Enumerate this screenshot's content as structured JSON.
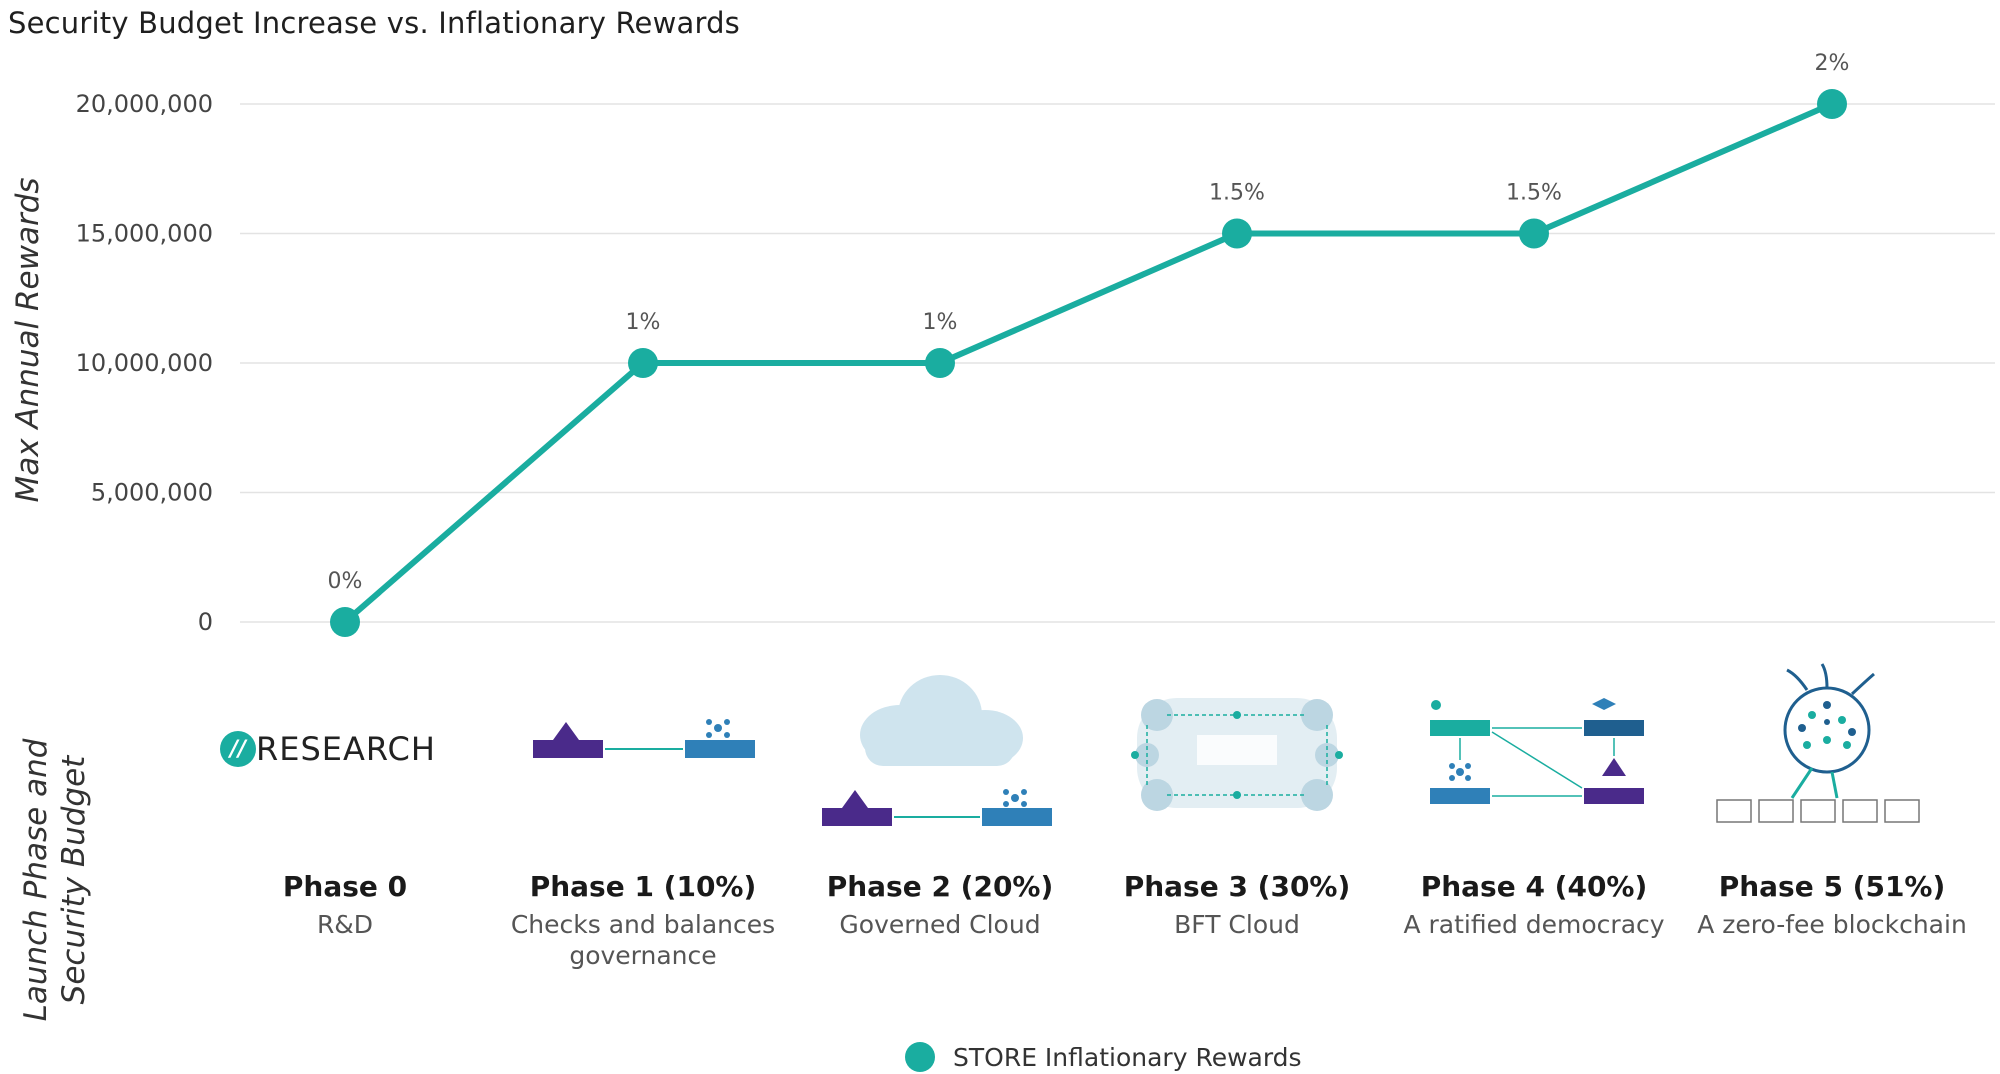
{
  "chart_data": {
    "type": "line",
    "title": "Security Budget Increase vs. Inflationary Rewards",
    "ylabel": "Max Annual Rewards",
    "lower_ylabel": [
      "Launch Phase and",
      "Security Budget"
    ],
    "ylim": [
      0,
      20000000
    ],
    "yticks": [
      0,
      5000000,
      10000000,
      15000000,
      20000000
    ],
    "ytick_labels": [
      "0",
      "5,000,000",
      "10,000,000",
      "15,000,000",
      "20,000,000"
    ],
    "grid": true,
    "legend_position": "bottom-center",
    "categories": [
      "Phase 0",
      "Phase 1 (10%)",
      "Phase 2 (20%)",
      "Phase 3 (30%)",
      "Phase 4 (40%)",
      "Phase 5 (51%)"
    ],
    "series": [
      {
        "name": "STORE Inflationary Rewards",
        "color": "#1aada0",
        "values": [
          0,
          10000000,
          10000000,
          15000000,
          15000000,
          20000000
        ],
        "labels": [
          "0%",
          "1%",
          "1%",
          "1.5%",
          "1.5%",
          "2%"
        ]
      }
    ]
  },
  "phases": [
    {
      "name": "Phase 0",
      "desc": "R&D",
      "art": "research-logo",
      "logo_mark": "//",
      "logo_word": "RESEARCH"
    },
    {
      "name": "Phase 1 (10%)",
      "desc": "Checks and balances governance",
      "art": "foundation-voters-diagram-icon"
    },
    {
      "name": "Phase 2 (20%)",
      "desc": "Governed Cloud",
      "art": "cloud-diagram-icon"
    },
    {
      "name": "Phase 3 (30%)",
      "desc": "BFT Cloud",
      "art": "bft-cloud-network-icon"
    },
    {
      "name": "Phase 4 (40%)",
      "desc": "A ratified democracy",
      "art": "store-governance-diagram-icon"
    },
    {
      "name": "Phase 5 (51%)",
      "desc": "A zero-fee blockchain",
      "art": "blockchain-diagram-icon"
    }
  ],
  "colors": {
    "accent": "#1aada0",
    "purple": "#4a2a8a",
    "blue": "#2f80b8",
    "grid": "#e3e3e3"
  }
}
